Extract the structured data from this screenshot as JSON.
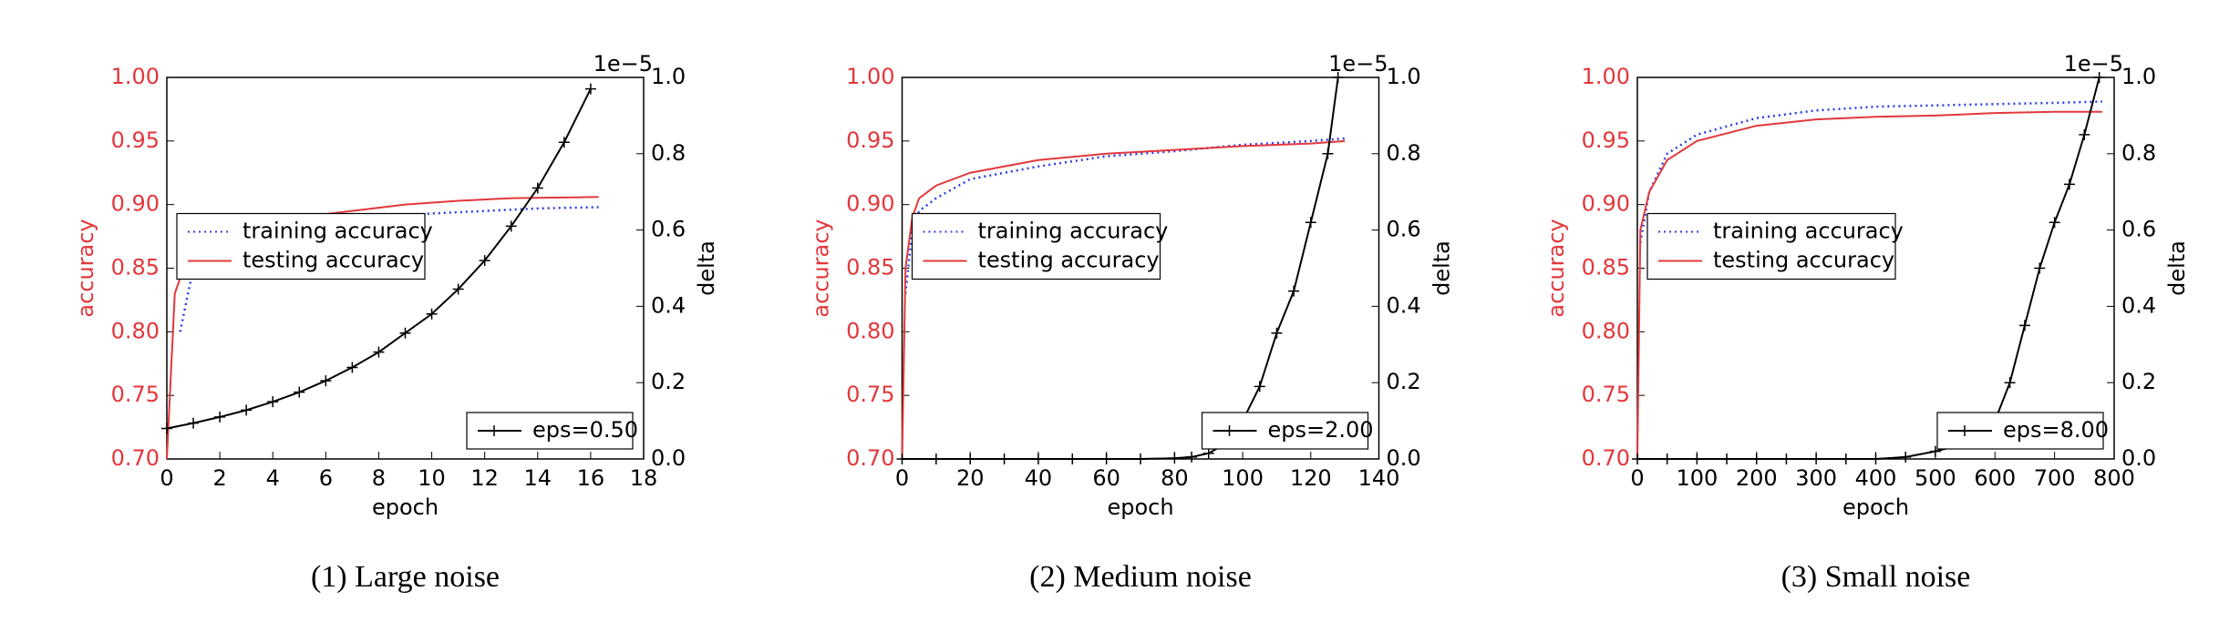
{
  "chart_data": [
    {
      "type": "line",
      "caption": "(1) Large noise",
      "xlabel": "epoch",
      "ylabel": "accuracy",
      "y2label": "delta",
      "y2_offset": "1e−5",
      "xlim": [
        0,
        18
      ],
      "xticks": [
        0,
        2,
        4,
        6,
        8,
        10,
        12,
        14,
        16,
        18
      ],
      "ylim": [
        0.7,
        1.0
      ],
      "yticks": [
        {
          "value": 0.7,
          "label": "0.70"
        },
        {
          "value": 0.75,
          "label": "0.75"
        },
        {
          "value": 0.8,
          "label": "0.80"
        },
        {
          "value": 0.85,
          "label": "0.85"
        },
        {
          "value": 0.9,
          "label": "0.90"
        },
        {
          "value": 0.95,
          "label": "0.95"
        },
        {
          "value": 1.0,
          "label": "1.00"
        }
      ],
      "y2lim": [
        0,
        1.0
      ],
      "y2ticks": [
        {
          "value": 0,
          "label": "0.0"
        },
        0.2,
        0.4,
        0.6,
        0.8,
        {
          "value": 1.0,
          "label": "1.0"
        }
      ],
      "legend_loc": "center left",
      "y2_legend_loc": "lower right",
      "series": [
        {
          "name": "training accuracy",
          "color": "#2b3ee6",
          "style": "dotted",
          "x": [
            0.5,
            1,
            2,
            3,
            4,
            6,
            8,
            10,
            12,
            14,
            16.3
          ],
          "values": [
            0.8,
            0.85,
            0.87,
            0.875,
            0.88,
            0.885,
            0.89,
            0.893,
            0.895,
            0.897,
            0.898
          ]
        },
        {
          "name": "testing accuracy",
          "color": "#e2383c",
          "style": "solid",
          "x": [
            0,
            0.3,
            0.8,
            1.5,
            3,
            5,
            7,
            9,
            11,
            13,
            16.3
          ],
          "values": [
            0.7,
            0.83,
            0.86,
            0.87,
            0.88,
            0.89,
            0.895,
            0.9,
            0.903,
            0.905,
            0.906
          ]
        },
        {
          "name": "eps=0.50",
          "color": "#000000",
          "style": "marker",
          "axis": "y2",
          "x": [
            0,
            1,
            2,
            3,
            4,
            5,
            6,
            7,
            8,
            9,
            10,
            11,
            12,
            13,
            14,
            15,
            16
          ],
          "values": [
            0.08,
            0.094,
            0.11,
            0.128,
            0.15,
            0.175,
            0.205,
            0.24,
            0.28,
            0.33,
            0.38,
            0.445,
            0.52,
            0.61,
            0.71,
            0.83,
            0.97
          ]
        }
      ]
    },
    {
      "type": "line",
      "caption": "(2) Medium noise",
      "xlabel": "epoch",
      "ylabel": "accuracy",
      "y2label": "delta",
      "y2_offset": "1e−5",
      "xlim": [
        0,
        140
      ],
      "xticks": [
        0,
        20,
        40,
        60,
        80,
        100,
        120,
        140
      ],
      "ylim": [
        0.7,
        1.0
      ],
      "yticks": [
        {
          "value": 0.7,
          "label": "0.70"
        },
        {
          "value": 0.75,
          "label": "0.75"
        },
        {
          "value": 0.8,
          "label": "0.80"
        },
        {
          "value": 0.85,
          "label": "0.85"
        },
        {
          "value": 0.9,
          "label": "0.90"
        },
        {
          "value": 0.95,
          "label": "0.95"
        },
        {
          "value": 1.0,
          "label": "1.00"
        }
      ],
      "y2lim": [
        0,
        1.0
      ],
      "y2ticks": [
        {
          "value": 0,
          "label": "0.0"
        },
        0.2,
        0.4,
        0.6,
        0.8,
        {
          "value": 1.0,
          "label": "1.0"
        }
      ],
      "legend_loc": "center left",
      "y2_legend_loc": "lower right",
      "series": [
        {
          "name": "training accuracy",
          "color": "#2b3ee6",
          "style": "dotted",
          "x": [
            1,
            3,
            5,
            10,
            20,
            40,
            60,
            80,
            100,
            120,
            130
          ],
          "values": [
            0.83,
            0.88,
            0.895,
            0.905,
            0.92,
            0.93,
            0.938,
            0.942,
            0.947,
            0.95,
            0.952
          ]
        },
        {
          "name": "testing accuracy",
          "color": "#e2383c",
          "style": "solid",
          "x": [
            0,
            1,
            3,
            5,
            10,
            20,
            40,
            60,
            80,
            100,
            120,
            130
          ],
          "values": [
            0.7,
            0.85,
            0.89,
            0.905,
            0.915,
            0.925,
            0.935,
            0.94,
            0.943,
            0.946,
            0.948,
            0.95
          ]
        },
        {
          "name": "eps=2.00",
          "color": "#000000",
          "style": "marker",
          "axis": "y2",
          "x": [
            0,
            10,
            20,
            30,
            40,
            50,
            60,
            70,
            80,
            85,
            90,
            95,
            100,
            105,
            110,
            115,
            120,
            125,
            128
          ],
          "values": [
            0,
            0,
            0,
            0,
            0,
            0,
            0,
            0,
            0.002,
            0.005,
            0.015,
            0.04,
            0.1,
            0.19,
            0.33,
            0.44,
            0.62,
            0.8,
            1.0
          ]
        }
      ]
    },
    {
      "type": "line",
      "caption": "(3) Small noise",
      "xlabel": "epoch",
      "ylabel": "accuracy",
      "y2label": "delta",
      "y2_offset": "1e−5",
      "xlim": [
        0,
        800
      ],
      "xticks": [
        0,
        100,
        200,
        300,
        400,
        500,
        600,
        700,
        800
      ],
      "ylim": [
        0.7,
        1.0
      ],
      "yticks": [
        {
          "value": 0.7,
          "label": "0.70"
        },
        {
          "value": 0.75,
          "label": "0.75"
        },
        {
          "value": 0.8,
          "label": "0.80"
        },
        {
          "value": 0.85,
          "label": "0.85"
        },
        {
          "value": 0.9,
          "label": "0.90"
        },
        {
          "value": 0.95,
          "label": "0.95"
        },
        {
          "value": 1.0,
          "label": "1.00"
        }
      ],
      "y2lim": [
        0,
        1.0
      ],
      "y2ticks": [
        {
          "value": 0,
          "label": "0.0"
        },
        0.2,
        0.4,
        0.6,
        0.8,
        {
          "value": 1.0,
          "label": "1.0"
        }
      ],
      "legend_loc": "center left",
      "y2_legend_loc": "lower right",
      "series": [
        {
          "name": "training accuracy",
          "color": "#2b3ee6",
          "style": "dotted",
          "x": [
            5,
            20,
            50,
            100,
            200,
            300,
            400,
            500,
            600,
            700,
            780
          ],
          "values": [
            0.87,
            0.91,
            0.94,
            0.955,
            0.968,
            0.974,
            0.977,
            0.978,
            0.979,
            0.98,
            0.981
          ]
        },
        {
          "name": "testing accuracy",
          "color": "#e2383c",
          "style": "solid",
          "x": [
            0,
            5,
            20,
            50,
            100,
            200,
            300,
            400,
            500,
            600,
            700,
            780
          ],
          "values": [
            0.7,
            0.88,
            0.91,
            0.935,
            0.95,
            0.962,
            0.967,
            0.969,
            0.97,
            0.972,
            0.973,
            0.973
          ]
        },
        {
          "name": "eps=8.00",
          "color": "#000000",
          "style": "marker",
          "axis": "y2",
          "x": [
            0,
            50,
            100,
            150,
            200,
            250,
            300,
            350,
            400,
            450,
            500,
            550,
            600,
            625,
            650,
            675,
            700,
            725,
            750,
            775
          ],
          "values": [
            0,
            0,
            0,
            0,
            0,
            0,
            0,
            0,
            0,
            0.005,
            0.02,
            0.04,
            0.1,
            0.2,
            0.35,
            0.5,
            0.62,
            0.72,
            0.85,
            1.0
          ]
        }
      ]
    }
  ]
}
